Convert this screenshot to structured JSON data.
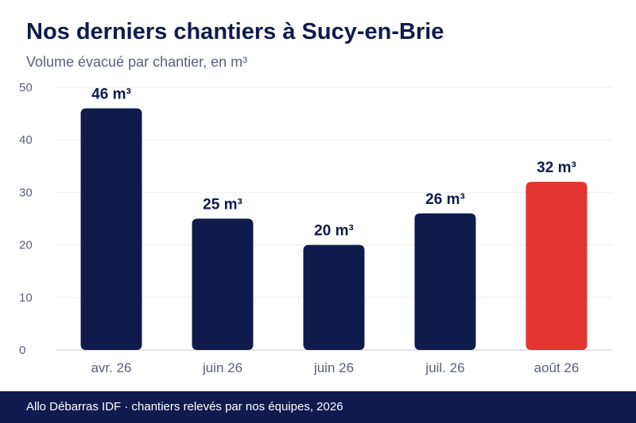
{
  "chart_data": {
    "type": "bar",
    "title": "Nos derniers chantiers à Sucy-en-Brie",
    "subtitle": "Volume évacué par chantier, en m³",
    "categories": [
      "avr. 26",
      "juin 26",
      "juin 26",
      "juil. 26",
      "août 26"
    ],
    "values": [
      46,
      25,
      20,
      26,
      32
    ],
    "data_labels": [
      "46 m³",
      "25 m³",
      "20 m³",
      "26 m³",
      "32 m³"
    ],
    "ylim": [
      0,
      50
    ],
    "yticks": [
      0,
      10,
      20,
      30,
      40,
      50
    ],
    "grid": true,
    "legend": "none",
    "colors": {
      "bar": "#0f1b4d",
      "highlight": "#e3342f",
      "grid": "#eeeeee",
      "axis": "#c8cbd6"
    },
    "highlight_index": 4
  },
  "footer": {
    "text": "Allo Débarras IDF · chantiers relevés par nos équipes, 2026"
  }
}
